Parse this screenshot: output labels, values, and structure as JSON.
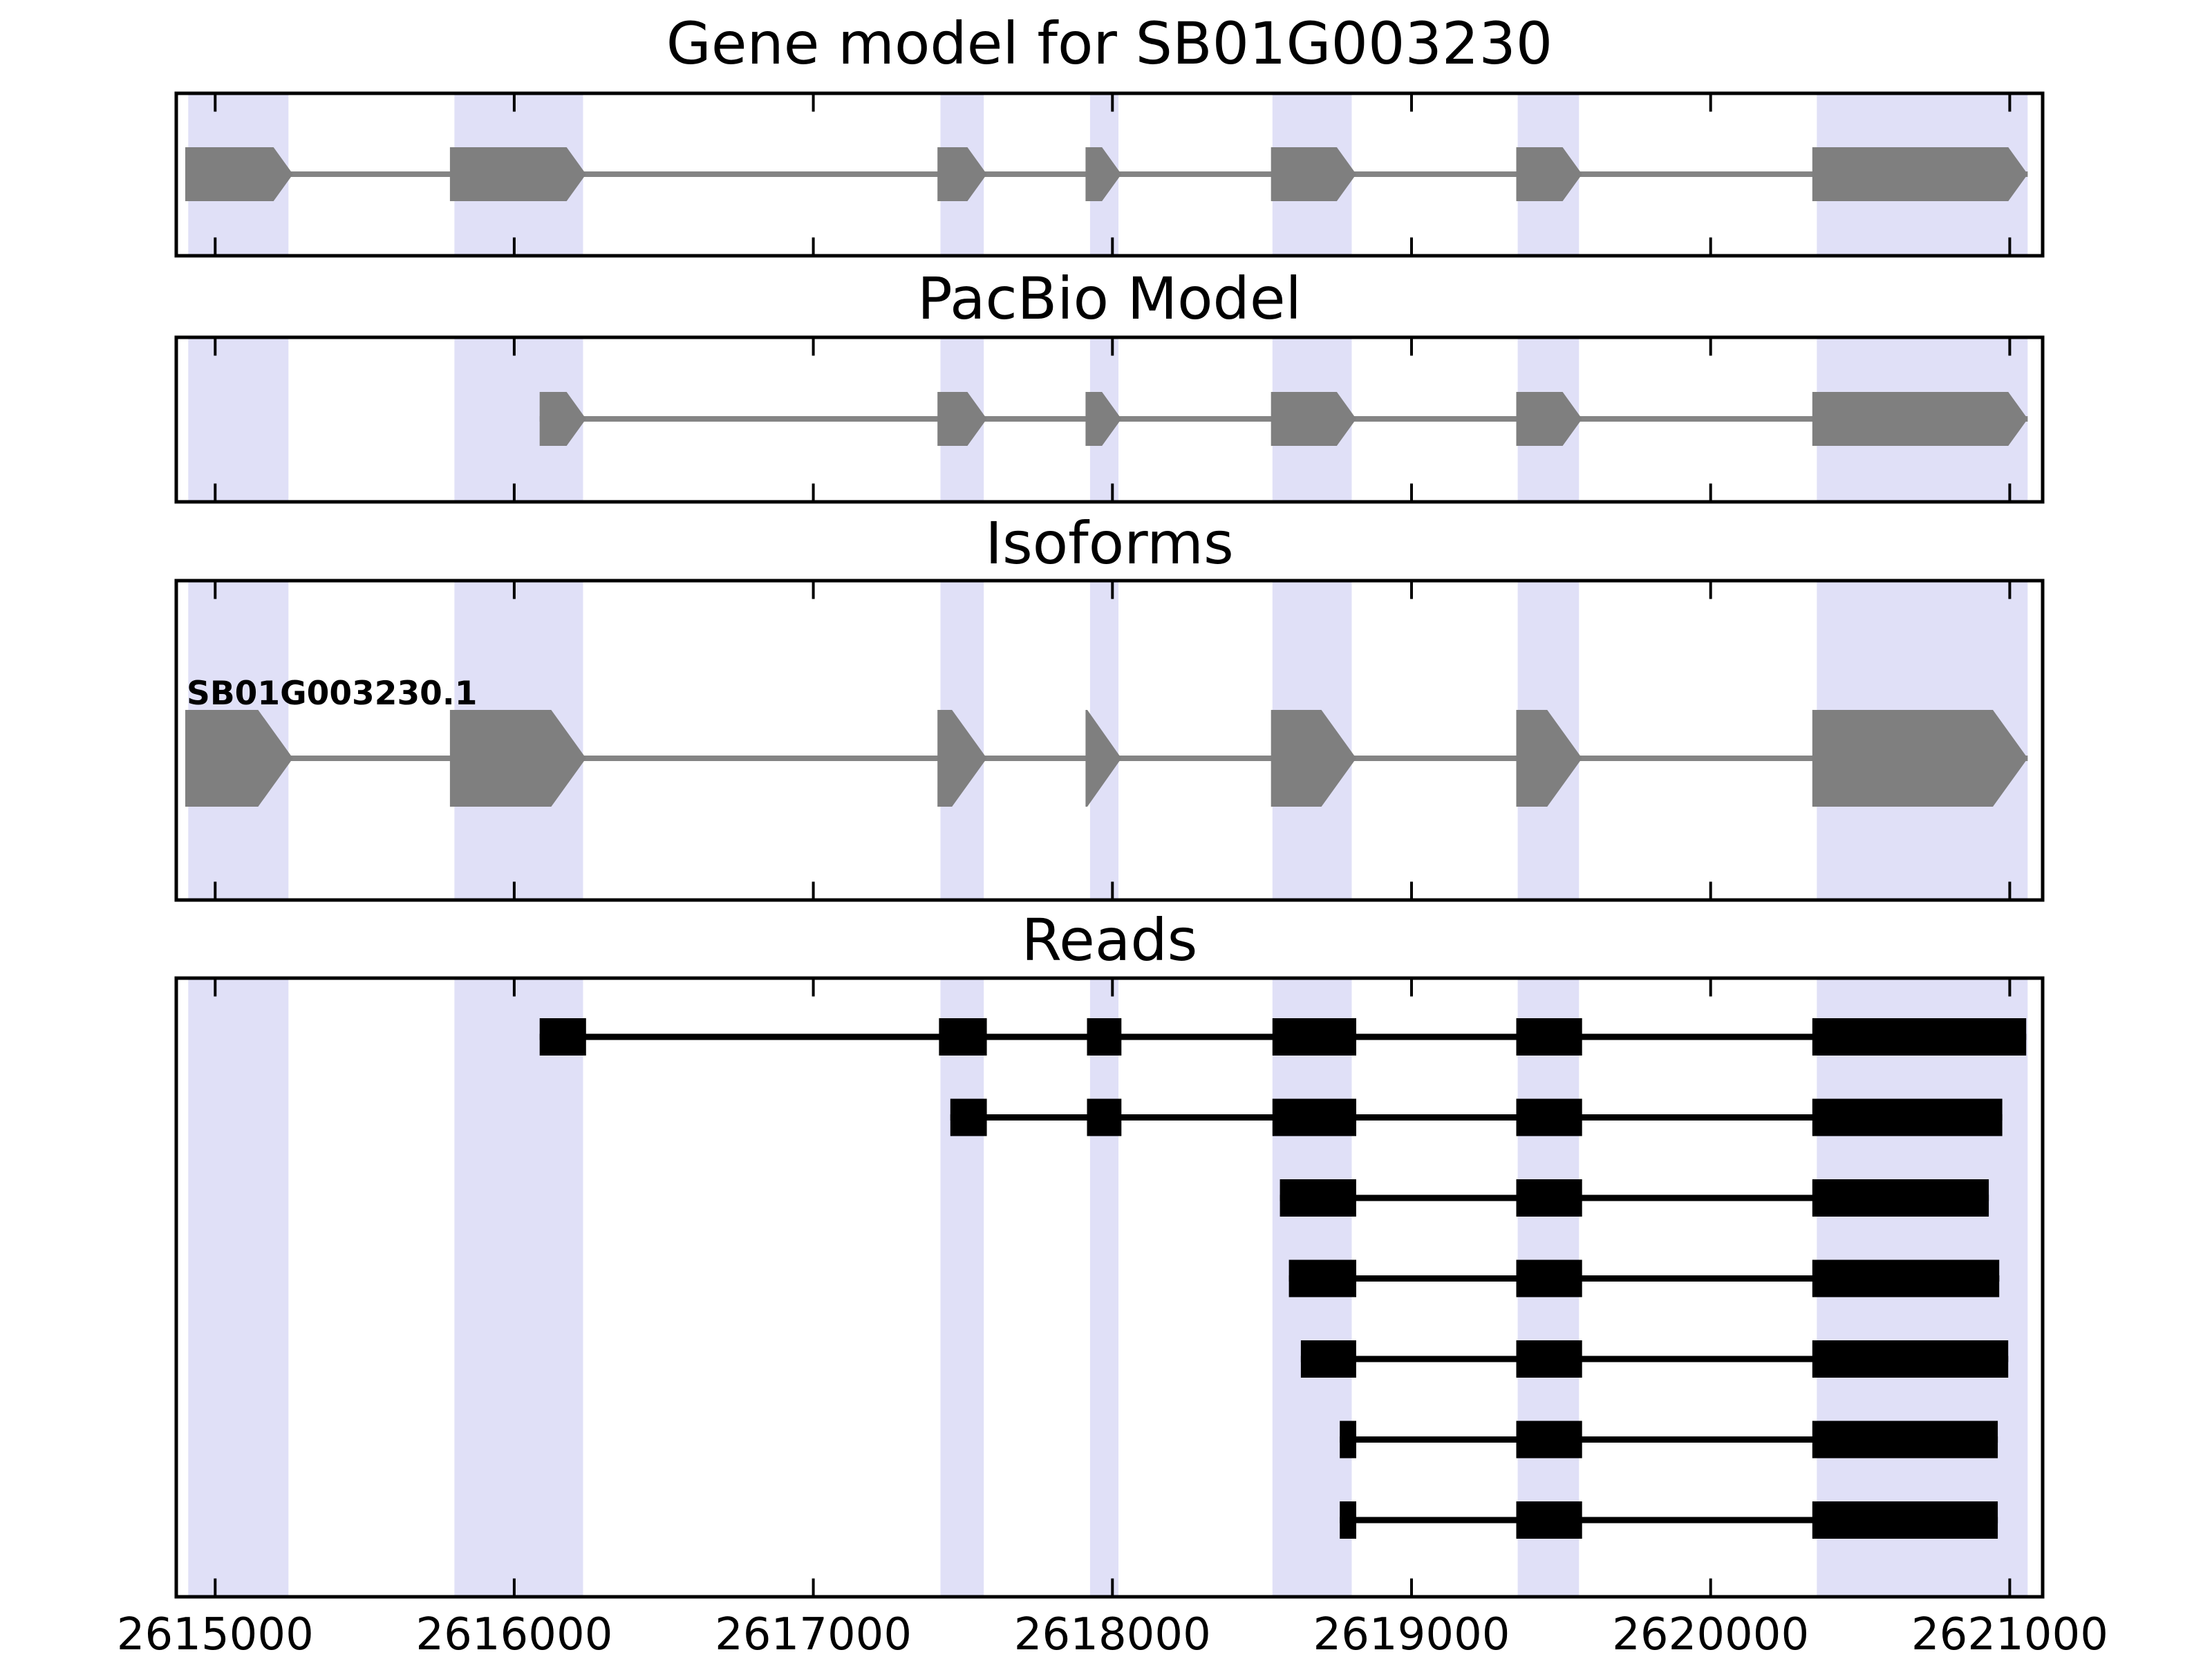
{
  "figure": {
    "background": "#ffffff",
    "colors": {
      "band": "#e0e0f7",
      "model_fill": "#7f7f7f",
      "model_intron": "#848484",
      "read_fill": "#000000",
      "frame": "#000000",
      "tick": "#000000",
      "text": "#000000"
    }
  },
  "chart_data": {
    "type": "gene-model-tracks",
    "title": "Gene model for SB01G003230",
    "x_axis": {
      "min": 2614870,
      "max": 2621110,
      "ticks": [
        2615000,
        2616000,
        2617000,
        2618000,
        2619000,
        2620000,
        2621000
      ],
      "tick_labels": [
        "2615000",
        "2616000",
        "2617000",
        "2618000",
        "2619000",
        "2620000",
        "2621000"
      ]
    },
    "highlight_regions": [
      [
        2614910,
        2615245
      ],
      [
        2615800,
        2616230
      ],
      [
        2617425,
        2617570
      ],
      [
        2617925,
        2618020
      ],
      [
        2618535,
        2618800
      ],
      [
        2619355,
        2619560
      ],
      [
        2620355,
        2621060
      ]
    ],
    "tracks": [
      {
        "name": "gene-model",
        "title": "Gene model for SB01G003230",
        "style": "arrow-exons",
        "strand": "+",
        "features": [
          {
            "label": "",
            "exons": [
              [
                2614900,
                2615260
              ],
              [
                2615785,
                2616240
              ],
              [
                2617415,
                2617580
              ],
              [
                2617910,
                2618030
              ],
              [
                2618530,
                2618815
              ],
              [
                2619350,
                2619570
              ],
              [
                2620340,
                2621060
              ]
            ]
          }
        ]
      },
      {
        "name": "pacbio-model",
        "title": "PacBio Model",
        "style": "arrow-exons",
        "strand": "+",
        "features": [
          {
            "label": "",
            "exons": [
              [
                2616085,
                2616240
              ],
              [
                2617415,
                2617580
              ],
              [
                2617910,
                2618030
              ],
              [
                2618530,
                2618815
              ],
              [
                2619350,
                2619570
              ],
              [
                2620340,
                2621060
              ]
            ]
          }
        ]
      },
      {
        "name": "isoforms",
        "title": "Isoforms",
        "style": "arrow-exons",
        "strand": "+",
        "features": [
          {
            "label": "SB01G003230.1",
            "exons": [
              [
                2614900,
                2615260
              ],
              [
                2615785,
                2616240
              ],
              [
                2617415,
                2617580
              ],
              [
                2617910,
                2618030
              ],
              [
                2618530,
                2618815
              ],
              [
                2619350,
                2619570
              ],
              [
                2620340,
                2621060
              ]
            ]
          }
        ]
      },
      {
        "name": "reads",
        "title": "Reads",
        "style": "rect-exons",
        "features": [
          {
            "label": "",
            "exons": [
              [
                2616085,
                2616240
              ],
              [
                2617420,
                2617580
              ],
              [
                2617915,
                2618030
              ],
              [
                2618535,
                2618815
              ],
              [
                2619350,
                2619570
              ],
              [
                2620340,
                2621055
              ]
            ]
          },
          {
            "label": "",
            "exons": [
              [
                2617458,
                2617580
              ],
              [
                2617915,
                2618030
              ],
              [
                2618535,
                2618815
              ],
              [
                2619350,
                2619570
              ],
              [
                2620340,
                2620975
              ]
            ]
          },
          {
            "label": "",
            "exons": [
              [
                2618560,
                2618815
              ],
              [
                2619350,
                2619570
              ],
              [
                2620340,
                2620930
              ]
            ]
          },
          {
            "label": "",
            "exons": [
              [
                2618590,
                2618815
              ],
              [
                2619350,
                2619570
              ],
              [
                2620340,
                2620965
              ]
            ]
          },
          {
            "label": "",
            "exons": [
              [
                2618630,
                2618815
              ],
              [
                2619350,
                2619570
              ],
              [
                2620340,
                2620995
              ]
            ]
          },
          {
            "label": "",
            "exons": [
              [
                2618760,
                2618815
              ],
              [
                2619350,
                2619570
              ],
              [
                2620340,
                2620960
              ]
            ]
          },
          {
            "label": "",
            "exons": [
              [
                2618760,
                2618815
              ],
              [
                2619350,
                2619570
              ],
              [
                2620340,
                2620960
              ]
            ]
          }
        ]
      }
    ]
  }
}
